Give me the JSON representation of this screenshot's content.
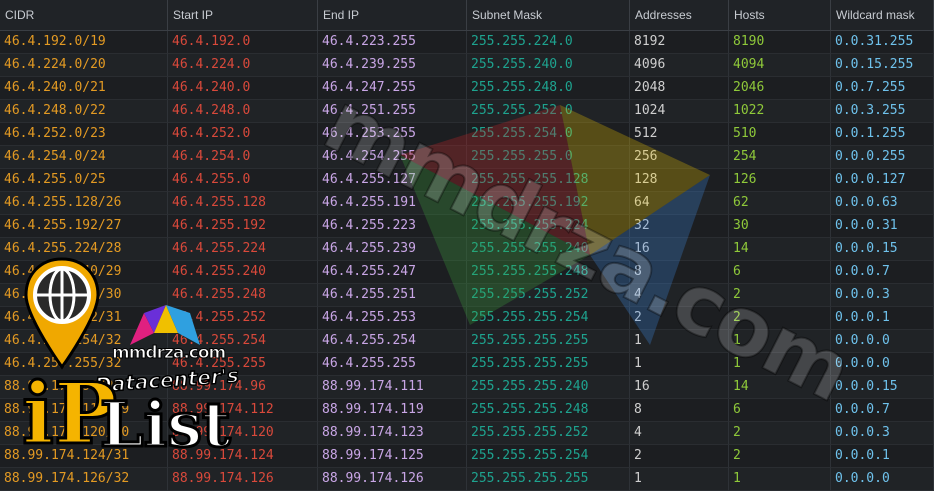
{
  "table": {
    "columns": [
      "CIDR",
      "Start IP",
      "End IP",
      "Subnet Mask",
      "Addresses",
      "Hosts",
      "Wildcard mask"
    ],
    "rows": [
      [
        "46.4.192.0/19",
        "46.4.192.0",
        "46.4.223.255",
        "255.255.224.0",
        "8192",
        "8190",
        "0.0.31.255"
      ],
      [
        "46.4.224.0/20",
        "46.4.224.0",
        "46.4.239.255",
        "255.255.240.0",
        "4096",
        "4094",
        "0.0.15.255"
      ],
      [
        "46.4.240.0/21",
        "46.4.240.0",
        "46.4.247.255",
        "255.255.248.0",
        "2048",
        "2046",
        "0.0.7.255"
      ],
      [
        "46.4.248.0/22",
        "46.4.248.0",
        "46.4.251.255",
        "255.255.252.0",
        "1024",
        "1022",
        "0.0.3.255"
      ],
      [
        "46.4.252.0/23",
        "46.4.252.0",
        "46.4.253.255",
        "255.255.254.0",
        "512",
        "510",
        "0.0.1.255"
      ],
      [
        "46.4.254.0/24",
        "46.4.254.0",
        "46.4.254.255",
        "255.255.255.0",
        "256",
        "254",
        "0.0.0.255"
      ],
      [
        "46.4.255.0/25",
        "46.4.255.0",
        "46.4.255.127",
        "255.255.255.128",
        "128",
        "126",
        "0.0.0.127"
      ],
      [
        "46.4.255.128/26",
        "46.4.255.128",
        "46.4.255.191",
        "255.255.255.192",
        "64",
        "62",
        "0.0.0.63"
      ],
      [
        "46.4.255.192/27",
        "46.4.255.192",
        "46.4.255.223",
        "255.255.255.224",
        "32",
        "30",
        "0.0.0.31"
      ],
      [
        "46.4.255.224/28",
        "46.4.255.224",
        "46.4.255.239",
        "255.255.255.240",
        "16",
        "14",
        "0.0.0.15"
      ],
      [
        "46.4.255.240/29",
        "46.4.255.240",
        "46.4.255.247",
        "255.255.255.248",
        "8",
        "6",
        "0.0.0.7"
      ],
      [
        "46.4.255.248/30",
        "46.4.255.248",
        "46.4.255.251",
        "255.255.255.252",
        "4",
        "2",
        "0.0.0.3"
      ],
      [
        "46.4.255.252/31",
        "46.4.255.252",
        "46.4.255.253",
        "255.255.255.254",
        "2",
        "2",
        "0.0.0.1"
      ],
      [
        "46.4.255.254/32",
        "46.4.255.254",
        "46.4.255.254",
        "255.255.255.255",
        "1",
        "1",
        "0.0.0.0"
      ],
      [
        "46.4.255.255/32",
        "46.4.255.255",
        "46.4.255.255",
        "255.255.255.255",
        "1",
        "1",
        "0.0.0.0"
      ],
      [
        "88.99.174.96/28",
        "88.99.174.96",
        "88.99.174.111",
        "255.255.255.240",
        "16",
        "14",
        "0.0.0.15"
      ],
      [
        "88.99.174.112/29",
        "88.99.174.112",
        "88.99.174.119",
        "255.255.255.248",
        "8",
        "6",
        "0.0.0.7"
      ],
      [
        "88.99.174.120/30",
        "88.99.174.120",
        "88.99.174.123",
        "255.255.255.252",
        "4",
        "2",
        "0.0.0.3"
      ],
      [
        "88.99.174.124/31",
        "88.99.174.124",
        "88.99.174.125",
        "255.255.255.254",
        "2",
        "2",
        "0.0.0.1"
      ],
      [
        "88.99.174.126/32",
        "88.99.174.126",
        "88.99.174.126",
        "255.255.255.255",
        "1",
        "1",
        "0.0.0.0"
      ]
    ]
  },
  "colors": {
    "cidr": "#e39a23",
    "start_ip": "#d9493b",
    "end_ip": "#c9a6e6",
    "mask": "#1ea38f",
    "addresses": "#cfcfcf",
    "hosts": "#8fc93a",
    "wildcard": "#6fc2ec"
  },
  "watermark": {
    "text": "mmdrza.com"
  },
  "logo": {
    "brand": "mmdrza.com",
    "subtitle": "Datacenter's",
    "word_ip": "iP",
    "word_list": "List"
  }
}
